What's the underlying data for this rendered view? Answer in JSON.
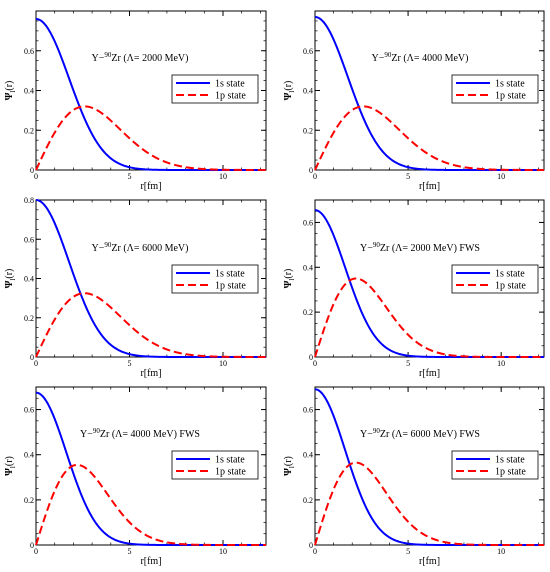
{
  "chart_data": [
    {
      "type": "line",
      "annotation": {
        "prefix": "Y−",
        "sup": "90",
        "main": "Zr (Λ= 2000 MeV)"
      },
      "xlabel": "r[fm]",
      "ylabel_main": "Ψ",
      "ylabel_sub": "l",
      "ylabel_tail": "(r)",
      "xlim": [
        0,
        12.3
      ],
      "ylim": [
        0,
        0.8
      ],
      "xticks": [
        0,
        5,
        10
      ],
      "yticks": [
        0,
        0.2,
        0.4,
        0.6
      ],
      "legend": [
        "1s state",
        "1p state"
      ],
      "s_amp": 0.76,
      "s_width": 2.5,
      "p_peak": 0.32,
      "p_rpeak": 2.6,
      "series": [
        {
          "name": "1s state",
          "color": "#0000ff",
          "style": "solid",
          "x": [
            0,
            1,
            2,
            3,
            4,
            5,
            6,
            8,
            10,
            12
          ],
          "y": [
            0.76,
            0.65,
            0.42,
            0.21,
            0.08,
            0.03,
            0.01,
            0.0,
            0.0,
            0.0
          ]
        },
        {
          "name": "1p state",
          "color": "#ff0000",
          "style": "dashed",
          "x": [
            0,
            1,
            2,
            2.6,
            3,
            4,
            5,
            6,
            8,
            10,
            12
          ],
          "y": [
            0.0,
            0.18,
            0.3,
            0.32,
            0.31,
            0.2,
            0.08,
            0.03,
            0.0,
            0.0,
            0.0
          ]
        }
      ]
    },
    {
      "type": "line",
      "annotation": {
        "prefix": "Y−",
        "sup": "90",
        "main": "Zr (Λ= 4000 MeV)"
      },
      "xlabel": "r[fm]",
      "ylabel_main": "Ψ",
      "ylabel_sub": "l",
      "ylabel_tail": "(r)",
      "xlim": [
        0,
        12.3
      ],
      "ylim": [
        0,
        0.8
      ],
      "xticks": [
        0,
        5,
        10
      ],
      "yticks": [
        0,
        0.2,
        0.4,
        0.6
      ],
      "legend": [
        "1s state",
        "1p state"
      ],
      "s_amp": 0.77,
      "s_width": 2.5,
      "p_peak": 0.32,
      "p_rpeak": 2.6,
      "series": [
        {
          "name": "1s state",
          "color": "#0000ff",
          "style": "solid",
          "x": [
            0,
            1,
            2,
            3,
            4,
            5,
            6,
            8,
            10,
            12
          ],
          "y": [
            0.77,
            0.66,
            0.42,
            0.21,
            0.08,
            0.03,
            0.01,
            0.0,
            0.0,
            0.0
          ]
        },
        {
          "name": "1p state",
          "color": "#ff0000",
          "style": "dashed",
          "x": [
            0,
            1,
            2,
            2.6,
            3,
            4,
            5,
            6,
            8,
            10,
            12
          ],
          "y": [
            0.0,
            0.18,
            0.3,
            0.32,
            0.31,
            0.2,
            0.08,
            0.03,
            0.0,
            0.0,
            0.0
          ]
        }
      ]
    },
    {
      "type": "line",
      "annotation": {
        "prefix": "Y−",
        "sup": "90",
        "main": "Zr (Λ= 6000 MeV)"
      },
      "xlabel": "r[fm]",
      "ylabel_main": "Ψ",
      "ylabel_sub": "l",
      "ylabel_tail": "(r)",
      "xlim": [
        0,
        12.3
      ],
      "ylim": [
        0,
        0.8
      ],
      "xticks": [
        0,
        5,
        10
      ],
      "yticks": [
        0,
        0.2,
        0.4,
        0.6,
        0.8
      ],
      "legend": [
        "1s state",
        "1p state"
      ],
      "s_amp": 0.8,
      "s_width": 2.5,
      "p_peak": 0.325,
      "p_rpeak": 2.6,
      "series": [
        {
          "name": "1s state",
          "color": "#0000ff",
          "style": "solid",
          "x": [
            0,
            1,
            2,
            3,
            4,
            5,
            6,
            8,
            10,
            12
          ],
          "y": [
            0.8,
            0.68,
            0.43,
            0.22,
            0.09,
            0.03,
            0.01,
            0.0,
            0.0,
            0.0
          ]
        },
        {
          "name": "1p state",
          "color": "#ff0000",
          "style": "dashed",
          "x": [
            0,
            1,
            2,
            2.6,
            3,
            4,
            5,
            6,
            8,
            10,
            12
          ],
          "y": [
            0.0,
            0.19,
            0.31,
            0.325,
            0.32,
            0.21,
            0.08,
            0.03,
            0.0,
            0.0,
            0.0
          ]
        }
      ]
    },
    {
      "type": "line",
      "annotation": {
        "prefix": "Y−",
        "sup": "90",
        "main": "Zr (Λ= 2000 MeV) FWS"
      },
      "xlabel": "r[fm]",
      "ylabel_main": "Ψ",
      "ylabel_sub": "l",
      "ylabel_tail": "(r)",
      "xlim": [
        0,
        12.3
      ],
      "ylim": [
        0,
        0.7
      ],
      "xticks": [
        0,
        5,
        10
      ],
      "yticks": [
        0,
        0.2,
        0.4,
        0.6
      ],
      "legend": [
        "1s state",
        "1p state"
      ],
      "s_amp": 0.655,
      "s_width": 2.3,
      "p_peak": 0.35,
      "p_rpeak": 2.2,
      "series": [
        {
          "name": "1s state",
          "color": "#0000ff",
          "style": "solid",
          "x": [
            0,
            1,
            2,
            3,
            4,
            5,
            6,
            8,
            10,
            12
          ],
          "y": [
            0.655,
            0.55,
            0.36,
            0.19,
            0.08,
            0.03,
            0.01,
            0.0,
            0.0,
            0.0
          ]
        },
        {
          "name": "1p state",
          "color": "#ff0000",
          "style": "dashed",
          "x": [
            0,
            1,
            2,
            2.2,
            3,
            4,
            5,
            6,
            8,
            10,
            12
          ],
          "y": [
            0.0,
            0.23,
            0.345,
            0.35,
            0.3,
            0.17,
            0.07,
            0.025,
            0.0,
            0.0,
            0.0
          ]
        }
      ]
    },
    {
      "type": "line",
      "annotation": {
        "prefix": "Y−",
        "sup": "90",
        "main": "Zr (Λ= 4000 MeV) FWS"
      },
      "xlabel": "r[fm]",
      "ylabel_main": "Ψ",
      "ylabel_sub": "l",
      "ylabel_tail": "(r)",
      "xlim": [
        0,
        12.3
      ],
      "ylim": [
        0,
        0.7
      ],
      "xticks": [
        0,
        5,
        10
      ],
      "yticks": [
        0,
        0.2,
        0.4,
        0.6
      ],
      "legend": [
        "1s state",
        "1p state"
      ],
      "s_amp": 0.675,
      "s_width": 2.3,
      "p_peak": 0.355,
      "p_rpeak": 2.2,
      "series": [
        {
          "name": "1s state",
          "color": "#0000ff",
          "style": "solid",
          "x": [
            0,
            1,
            2,
            3,
            4,
            5,
            6,
            8,
            10,
            12
          ],
          "y": [
            0.675,
            0.57,
            0.37,
            0.19,
            0.08,
            0.03,
            0.01,
            0.0,
            0.0,
            0.0
          ]
        },
        {
          "name": "1p state",
          "color": "#ff0000",
          "style": "dashed",
          "x": [
            0,
            1,
            2,
            2.2,
            3,
            4,
            5,
            6,
            8,
            10,
            12
          ],
          "y": [
            0.0,
            0.23,
            0.35,
            0.355,
            0.3,
            0.17,
            0.07,
            0.025,
            0.0,
            0.0,
            0.0
          ]
        }
      ]
    },
    {
      "type": "line",
      "annotation": {
        "prefix": "Y−",
        "sup": "90",
        "main": "Zr (Λ= 6000 MeV) FWS"
      },
      "xlabel": "r[fm]",
      "ylabel_main": "Ψ",
      "ylabel_sub": "l",
      "ylabel_tail": "(r)",
      "xlim": [
        0,
        12.3
      ],
      "ylim": [
        0,
        0.7
      ],
      "xticks": [
        0,
        5,
        10
      ],
      "yticks": [
        0,
        0.2,
        0.4,
        0.6
      ],
      "legend": [
        "1s state",
        "1p state"
      ],
      "s_amp": 0.69,
      "s_width": 2.3,
      "p_peak": 0.365,
      "p_rpeak": 2.2,
      "series": [
        {
          "name": "1s state",
          "color": "#0000ff",
          "style": "solid",
          "x": [
            0,
            1,
            2,
            3,
            4,
            5,
            6,
            8,
            10,
            12
          ],
          "y": [
            0.69,
            0.58,
            0.38,
            0.2,
            0.08,
            0.03,
            0.01,
            0.0,
            0.0,
            0.0
          ]
        },
        {
          "name": "1p state",
          "color": "#ff0000",
          "style": "dashed",
          "x": [
            0,
            1,
            2,
            2.2,
            3,
            4,
            5,
            6,
            8,
            10,
            12
          ],
          "y": [
            0.0,
            0.24,
            0.36,
            0.365,
            0.31,
            0.18,
            0.07,
            0.025,
            0.0,
            0.0,
            0.0
          ]
        }
      ]
    }
  ]
}
